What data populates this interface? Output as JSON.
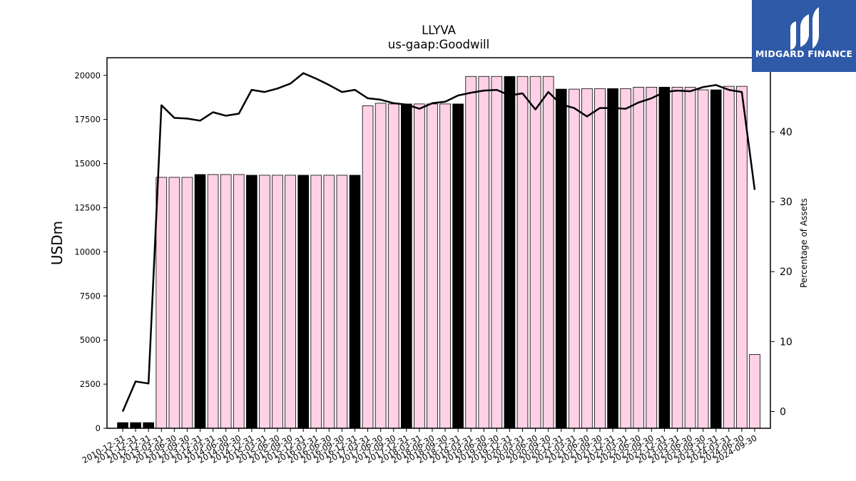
{
  "brand": {
    "name": "MIDGARD FINANCE",
    "color": "#2f5aa8"
  },
  "chart_data": {
    "type": "bar",
    "title": "LLYVA",
    "subtitle": "us-gaap:Goodwill",
    "ylabel": "USDm",
    "y2label": "Percentage of Assets",
    "ylim": [
      0,
      21000
    ],
    "y2lim": [
      -2.4,
      50.6
    ],
    "yticks": [
      0,
      2500,
      5000,
      7500,
      10000,
      12500,
      15000,
      17500,
      20000
    ],
    "y2ticks": [
      0,
      10,
      20,
      30,
      40
    ],
    "colors": {
      "annual": "#000000",
      "quarterly": "#ffd1e6",
      "line": "#000000"
    },
    "categories": [
      "2010-12-31",
      "2011-12-31",
      "2012-12-31",
      "2013-03-31",
      "2013-06-30",
      "2013-09-30",
      "2013-12-31",
      "2014-03-31",
      "2014-06-30",
      "2014-09-30",
      "2014-12-31",
      "2015-03-31",
      "2015-06-30",
      "2015-09-30",
      "2015-12-31",
      "2016-03-31",
      "2016-06-30",
      "2016-09-30",
      "2016-12-31",
      "2017-03-31",
      "2017-06-30",
      "2017-09-30",
      "2017-12-31",
      "2018-03-31",
      "2018-06-30",
      "2018-09-30",
      "2018-12-31",
      "2019-03-31",
      "2019-06-30",
      "2019-09-30",
      "2019-12-31",
      "2020-03-31",
      "2020-06-30",
      "2020-09-30",
      "2020-12-31",
      "2021-03-31",
      "2021-06-30",
      "2021-09-30",
      "2021-12-31",
      "2022-03-31",
      "2022-06-30",
      "2022-09-30",
      "2022-12-31",
      "2023-03-31",
      "2023-06-30",
      "2023-09-30",
      "2023-12-31",
      "2024-03-31",
      "2024-06-30",
      "2024-09-30"
    ],
    "annual": [
      true,
      true,
      true,
      false,
      false,
      false,
      true,
      false,
      false,
      false,
      true,
      false,
      false,
      false,
      true,
      false,
      false,
      false,
      true,
      false,
      false,
      false,
      true,
      false,
      false,
      false,
      true,
      false,
      false,
      false,
      true,
      false,
      false,
      false,
      true,
      false,
      false,
      false,
      true,
      false,
      false,
      false,
      true,
      false,
      false,
      false,
      true,
      false,
      false,
      false
    ],
    "series": [
      {
        "name": "Goodwill",
        "values": [
          320,
          320,
          320,
          14220,
          14220,
          14220,
          14380,
          14380,
          14380,
          14380,
          14340,
          14340,
          14340,
          14340,
          14340,
          14340,
          14340,
          14340,
          14340,
          18280,
          18420,
          18380,
          18380,
          18380,
          18380,
          18380,
          18380,
          19940,
          19940,
          19940,
          19940,
          19940,
          19940,
          19940,
          19220,
          19220,
          19250,
          19250,
          19250,
          19250,
          19330,
          19330,
          19330,
          19330,
          19330,
          19180,
          19180,
          19380,
          19380,
          4180
        ]
      },
      {
        "name": "Percentage of Assets",
        "axis": "right",
        "values": [
          0,
          4.3,
          4.0,
          43.8,
          42.0,
          41.9,
          41.6,
          42.8,
          42.3,
          42.6,
          46.0,
          45.7,
          46.2,
          46.9,
          48.4,
          47.6,
          46.7,
          45.7,
          46.0,
          44.8,
          44.6,
          44.1,
          43.9,
          43.3,
          44.1,
          44.3,
          45.2,
          45.6,
          45.9,
          46.0,
          45.2,
          45.5,
          43.2,
          45.7,
          43.9,
          43.4,
          42.2,
          43.4,
          43.4,
          43.3,
          44.2,
          44.8,
          45.7,
          45.9,
          45.8,
          46.4,
          46.7,
          46.0,
          45.7,
          31.7
        ]
      }
    ]
  }
}
